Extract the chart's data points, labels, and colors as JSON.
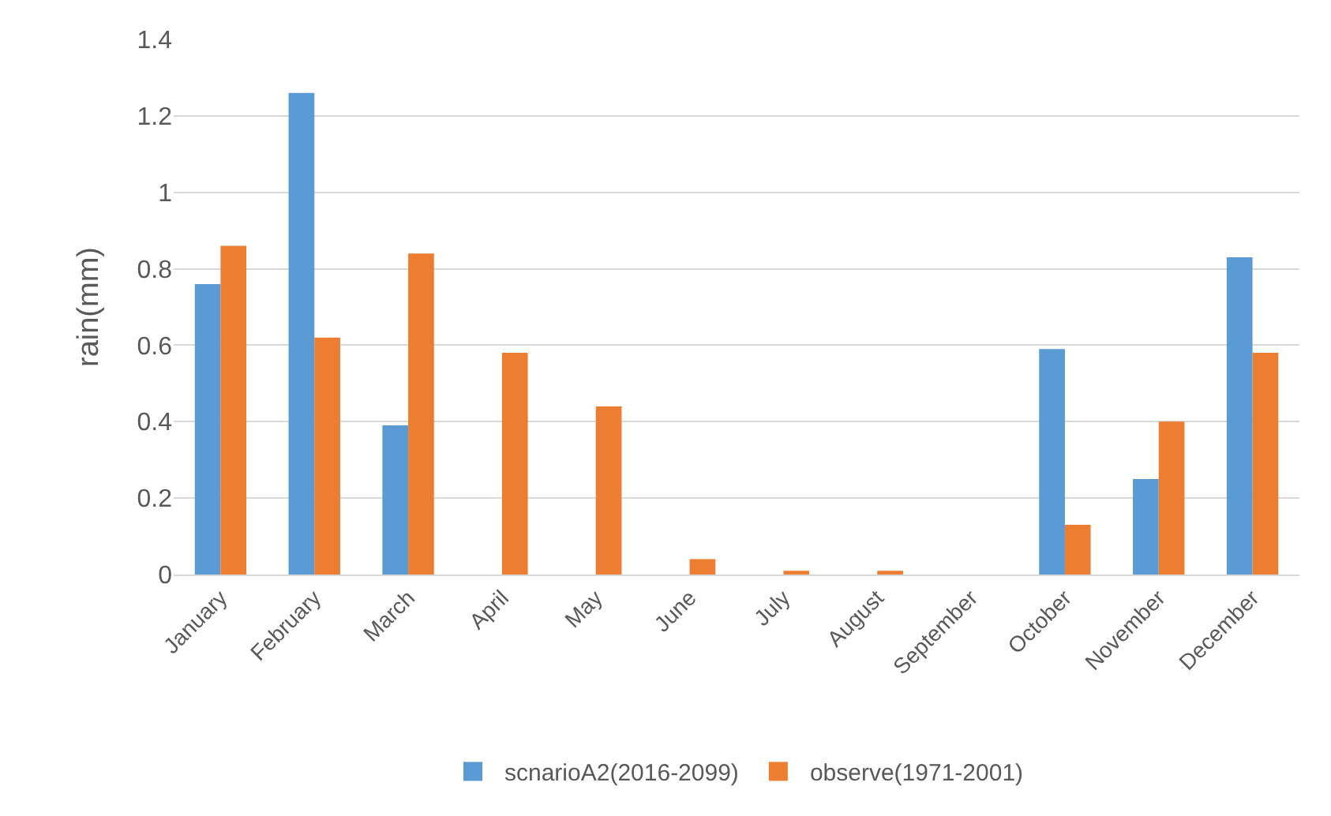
{
  "chart_data": {
    "type": "bar",
    "ylabel": "rain(mm)",
    "categories": [
      "January",
      "February",
      "March",
      "April",
      "May",
      "June",
      "July",
      "August",
      "September",
      "October",
      "November",
      "December"
    ],
    "series": [
      {
        "name": "scnarioA2(2016-2099)",
        "color": "#5b9bd5",
        "values": [
          0.76,
          1.26,
          0.39,
          0,
          0,
          0,
          0,
          0,
          0,
          0.59,
          0.25,
          0.83
        ]
      },
      {
        "name": "observe(1971-2001)",
        "color": "#ed7d31",
        "values": [
          0.86,
          0.62,
          0.84,
          0.58,
          0.44,
          0.04,
          0.01,
          0.01,
          0,
          0.13,
          0.4,
          0.58
        ]
      }
    ],
    "ylim": [
      0,
      1.4
    ],
    "yticks": [
      0,
      0.2,
      0.4,
      0.6,
      0.8,
      1,
      1.2,
      1.4
    ],
    "grid": "y",
    "legend": "bottom"
  }
}
